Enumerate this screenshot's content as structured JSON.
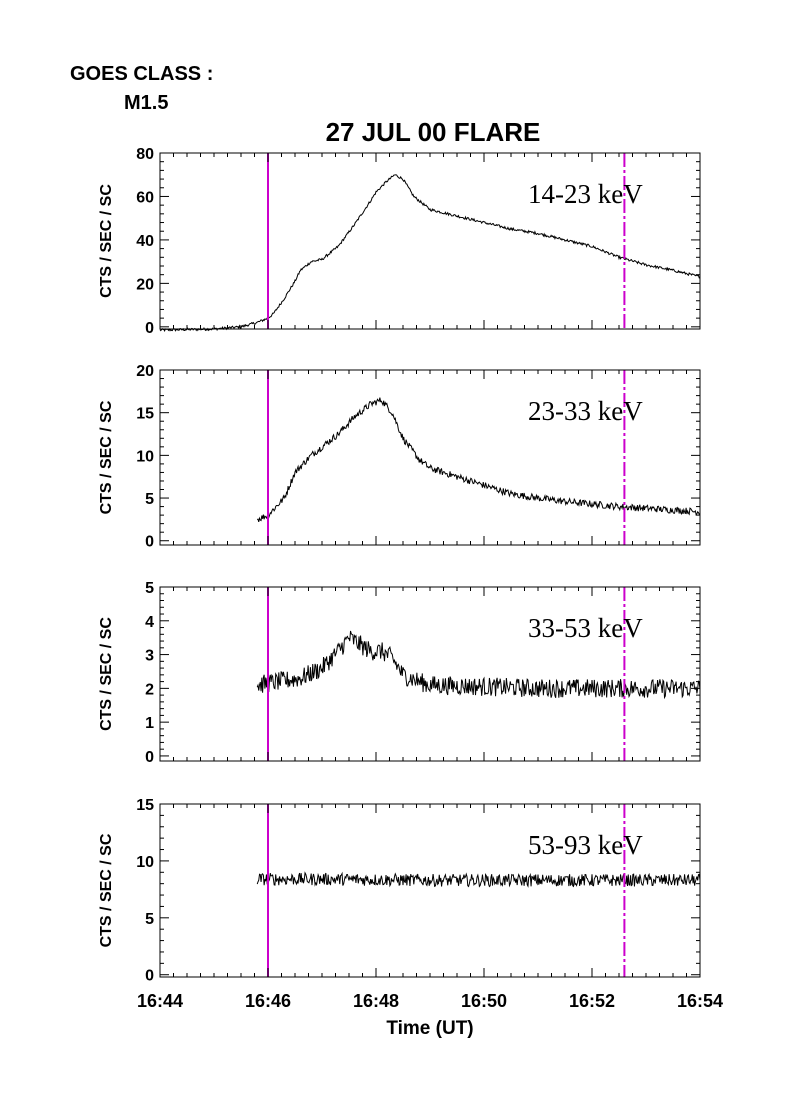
{
  "goes_label": "GOES CLASS :",
  "goes_class": "M1.5",
  "title": "27 JUL 00 FLARE",
  "xlabel": "Time (UT)",
  "x_tick_labels": [
    "16:44",
    "16:46",
    "16:48",
    "16:50",
    "16:52",
    "16:54"
  ],
  "colors": {
    "marker": "#cc00cc",
    "trace": "#000000",
    "axes": "#000000"
  },
  "chart_data": [
    {
      "type": "line",
      "band": "14-23 keV",
      "ylabel": "CTS / SEC / SC",
      "xlim": [
        0,
        10
      ],
      "ylim": [
        -1,
        80
      ],
      "yticks": [
        0,
        20,
        40,
        60,
        80
      ],
      "noise": 0.6,
      "markers": [
        2.0,
        8.6
      ],
      "series": [
        {
          "x": [
            0,
            1,
            1.5,
            1.8,
            2.0,
            2.1,
            2.3,
            2.5,
            2.6,
            2.8,
            3.0,
            3.3,
            3.6,
            3.9,
            4.0,
            4.2,
            4.35,
            4.5,
            4.7,
            5.0,
            5.5,
            6.0,
            6.5,
            7.0,
            7.5,
            8.0,
            8.5,
            9.0,
            9.5,
            10.0
          ],
          "y": [
            -1.5,
            -1,
            0,
            2,
            4,
            6,
            13,
            21,
            26,
            30,
            31,
            37,
            47,
            58,
            62,
            67,
            70,
            68,
            60,
            54,
            51,
            48,
            45,
            43,
            40,
            37,
            32,
            28.5,
            26,
            23
          ]
        }
      ]
    },
    {
      "type": "line",
      "band": "23-33 keV",
      "ylabel": "CTS / SEC / SC",
      "xlim": [
        0,
        10
      ],
      "ylim": [
        -0.5,
        20
      ],
      "yticks": [
        0,
        5,
        10,
        15,
        20
      ],
      "noise": 0.4,
      "markers": [
        2.0,
        8.6
      ],
      "series": [
        {
          "x": [
            1.8,
            2.0,
            2.3,
            2.5,
            2.8,
            3.0,
            3.3,
            3.6,
            3.9,
            4.1,
            4.3,
            4.5,
            4.8,
            5.0,
            5.5,
            6.0,
            6.5,
            7.0,
            7.5,
            8.0,
            8.5,
            9.0,
            9.5,
            10.0
          ],
          "y": [
            2.5,
            3,
            5,
            8,
            10,
            11,
            12.5,
            14.5,
            16,
            16.5,
            15,
            12,
            9.5,
            8.5,
            7.5,
            6.5,
            5.5,
            5,
            4.6,
            4.3,
            4,
            3.8,
            3.6,
            3.4
          ]
        }
      ]
    },
    {
      "type": "line",
      "band": "33-53 keV",
      "ylabel": "CTS / SEC / SC",
      "xlim": [
        0,
        10
      ],
      "ylim": [
        -0.15,
        5
      ],
      "yticks": [
        0,
        1,
        2,
        3,
        4,
        5
      ],
      "noise": 0.28,
      "markers": [
        2.0,
        8.6
      ],
      "series": [
        {
          "x": [
            1.8,
            2.2,
            2.6,
            3.0,
            3.3,
            3.5,
            3.7,
            3.9,
            4.1,
            4.3,
            4.5,
            4.8,
            5.0,
            6.0,
            7.0,
            8.0,
            9.0,
            10.0
          ],
          "y": [
            2.1,
            2.2,
            2.3,
            2.6,
            3.1,
            3.5,
            3.3,
            3.1,
            3.1,
            2.9,
            2.4,
            2.2,
            2.1,
            2.05,
            2.0,
            2.0,
            2.0,
            2.0
          ]
        }
      ]
    },
    {
      "type": "line",
      "band": "53-93 keV",
      "ylabel": "CTS / SEC / SC",
      "xlim": [
        0,
        10
      ],
      "ylim": [
        -0.2,
        15
      ],
      "yticks": [
        0,
        5,
        10,
        15
      ],
      "noise": 0.55,
      "markers": [
        2.0,
        8.6
      ],
      "series": [
        {
          "x": [
            1.8,
            3.0,
            5.0,
            7.0,
            9.0,
            10.0
          ],
          "y": [
            8.4,
            8.4,
            8.3,
            8.3,
            8.3,
            8.3
          ]
        }
      ]
    }
  ]
}
